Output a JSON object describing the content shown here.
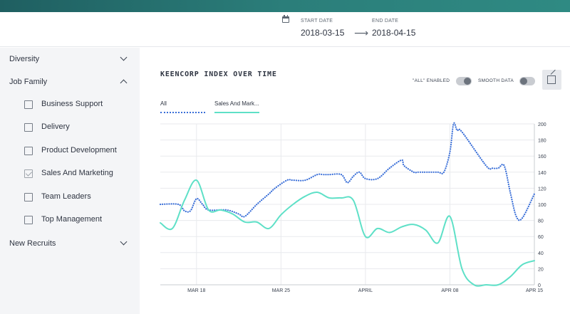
{
  "header": {
    "start_caption": "START DATE",
    "start_value": "2018-03-15",
    "end_caption": "END DATE",
    "end_value": "2018-04-15",
    "arrow": "⟶"
  },
  "sidebar": {
    "sections": [
      {
        "label": "Diversity",
        "expanded": false
      },
      {
        "label": "Job Family",
        "expanded": true
      },
      {
        "label": "New Recruits",
        "expanded": false
      }
    ],
    "job_family_items": [
      {
        "label": "Business Support",
        "checked": false
      },
      {
        "label": "Delivery",
        "checked": false
      },
      {
        "label": "Product Development",
        "checked": false
      },
      {
        "label": "Sales And Marketing",
        "checked": true
      },
      {
        "label": "Team Leaders",
        "checked": false
      },
      {
        "label": "Top Management",
        "checked": false
      }
    ]
  },
  "chart_panel": {
    "title": "KEENCORP INDEX OVER TIME",
    "all_toggle_label": "\"ALL\" ENABLED",
    "smooth_toggle_label": "SMOOTH DATA",
    "expand_icon": "external-expand-icon"
  },
  "chart_data": {
    "type": "line",
    "title": "KEENCORP INDEX OVER TIME",
    "xlabel": "",
    "ylabel": "",
    "x_ticks": [
      {
        "day": 3,
        "label": "MAR 18"
      },
      {
        "day": 10,
        "label": "MAR 25"
      },
      {
        "day": 17,
        "label": "APRIL"
      },
      {
        "day": 24,
        "label": "APR 08"
      },
      {
        "day": 31,
        "label": "APR 15"
      }
    ],
    "xlim": [
      0,
      31
    ],
    "ylim": [
      0,
      200
    ],
    "y_ticks": [
      0,
      20,
      40,
      60,
      80,
      100,
      120,
      140,
      160,
      180,
      200
    ],
    "y_axis_side": "right",
    "grid": true,
    "series": [
      {
        "name": "All",
        "color": "#3a6fd8",
        "style": "dotted",
        "x": [
          0,
          1.5,
          2,
          2.5,
          3,
          3.5,
          4,
          5.5,
          6.5,
          7,
          8,
          9,
          9.5,
          10.5,
          11,
          12,
          13,
          13.5,
          14,
          15,
          15.5,
          16,
          16.5,
          17,
          18,
          19,
          20,
          20.2,
          21,
          21.3,
          21.7,
          22,
          23,
          23.5,
          24,
          24.3,
          24.6,
          25,
          27,
          27.5,
          28,
          28.5,
          29,
          29.5,
          30,
          31
        ],
        "y": [
          100,
          100,
          92,
          92,
          107,
          100,
          93,
          93,
          88,
          85,
          100,
          113,
          120,
          130,
          130,
          130,
          137,
          137,
          137,
          137,
          127,
          135,
          140,
          132,
          132,
          145,
          155,
          148,
          140,
          140,
          140,
          140,
          140,
          140,
          165,
          200,
          192,
          190,
          148,
          145,
          145,
          148,
          115,
          85,
          83,
          113
        ]
      },
      {
        "name": "Sales And Mark...",
        "color": "#5ee0c7",
        "style": "solid",
        "x": [
          0,
          1,
          2,
          3,
          4,
          5,
          6,
          7,
          8,
          9,
          10,
          11,
          12,
          13,
          14,
          15,
          16,
          17,
          18,
          19,
          20,
          21,
          22,
          23,
          24,
          25,
          26,
          27,
          28,
          29,
          30,
          31
        ],
        "y": [
          77,
          70,
          105,
          130,
          93,
          93,
          88,
          78,
          78,
          70,
          87,
          100,
          110,
          115,
          108,
          108,
          105,
          60,
          70,
          65,
          72,
          75,
          68,
          52,
          85,
          20,
          0,
          0,
          0,
          10,
          25,
          30
        ]
      }
    ]
  }
}
